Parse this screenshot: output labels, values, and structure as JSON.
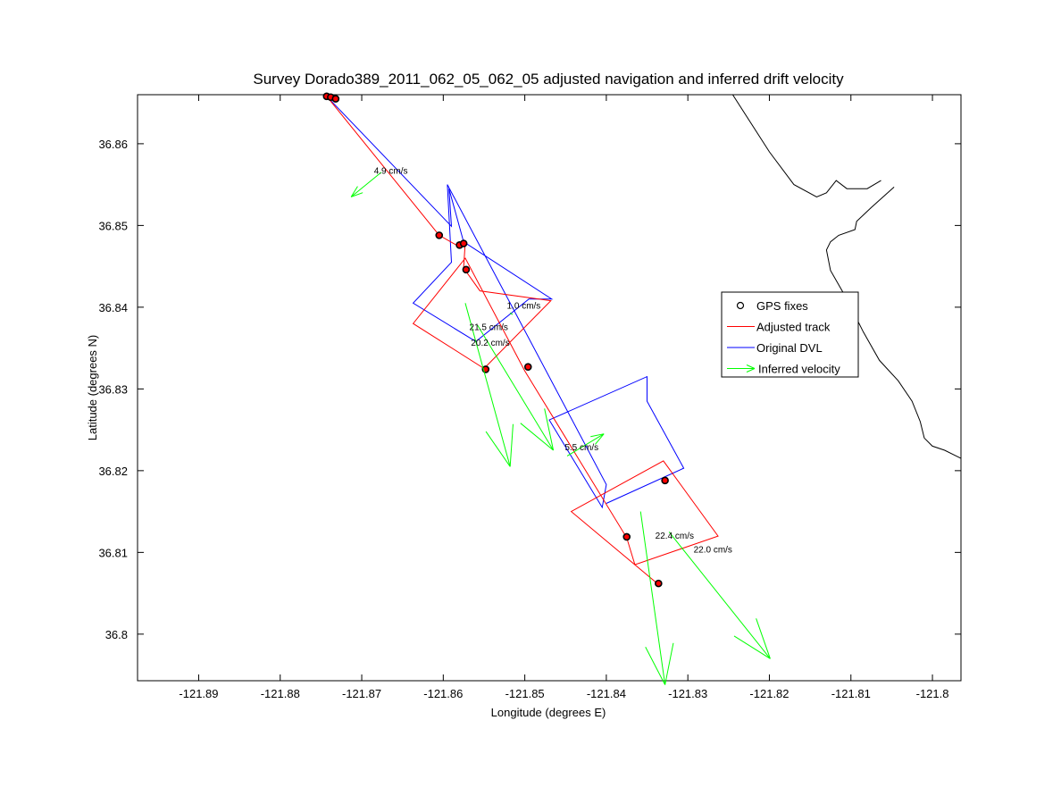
{
  "chart_data": {
    "type": "scatter",
    "title": "Survey Dorado389_2011_062_05_062_05 adjusted navigation and inferred drift velocity",
    "xlabel": "Longitude (degrees E)",
    "ylabel": "Latitude (degrees N)",
    "xlim": [
      -121.8975,
      -121.7965
    ],
    "ylim": [
      36.7943,
      36.866
    ],
    "x_ticks": [
      -121.89,
      -121.88,
      -121.87,
      -121.86,
      -121.85,
      -121.84,
      -121.83,
      -121.82,
      -121.81,
      -121.8
    ],
    "y_ticks": [
      36.8,
      36.81,
      36.82,
      36.83,
      36.84,
      36.85,
      36.86
    ],
    "x_tick_labels": [
      "-121.89",
      "-121.88",
      "-121.87",
      "-121.86",
      "-121.85",
      "-121.84",
      "-121.83",
      "-121.82",
      "-121.81",
      "-121.8"
    ],
    "y_tick_labels": [
      "36.8",
      "36.81",
      "36.82",
      "36.83",
      "36.84",
      "36.85",
      "36.86"
    ],
    "grid": false,
    "legend_position": "right",
    "legend": [
      {
        "label": "GPS fixes",
        "color": "#000000",
        "marker": "circle"
      },
      {
        "label": "Adjusted track",
        "color": "#ff0000",
        "marker": "line"
      },
      {
        "label": "Original DVL",
        "color": "#0000ff",
        "marker": "line"
      },
      {
        "label": "Inferred velocity",
        "color": "#00ff00",
        "marker": "arrow"
      }
    ],
    "series": [
      {
        "name": "Original DVL",
        "color": "#0000ff",
        "points": [
          [
            -121.8743,
            36.8658
          ],
          [
            -121.859,
            36.8499
          ],
          [
            -121.8593,
            36.8545
          ],
          [
            -121.8575,
            36.848
          ],
          [
            -121.8467,
            36.841
          ],
          [
            -121.8495,
            36.841
          ],
          [
            -121.856,
            36.8358
          ],
          [
            -121.8637,
            36.8405
          ],
          [
            -121.859,
            36.8455
          ],
          [
            -121.8595,
            36.855
          ],
          [
            -121.84,
            36.8183
          ],
          [
            -121.8405,
            36.8155
          ],
          [
            -121.847,
            36.8262
          ],
          [
            -121.835,
            36.8315
          ],
          [
            -121.835,
            36.8285
          ],
          [
            -121.8305,
            36.8203
          ],
          [
            -121.84,
            36.816
          ]
        ]
      },
      {
        "name": "Adjusted track",
        "color": "#ff0000",
        "points": [
          [
            -121.8743,
            36.8658
          ],
          [
            -121.8605,
            36.8488
          ],
          [
            -121.8582,
            36.8475
          ],
          [
            -121.8573,
            36.848
          ],
          [
            -121.8575,
            36.8448
          ],
          [
            -121.8555,
            36.842
          ],
          [
            -121.8468,
            36.8408
          ],
          [
            -121.855,
            36.8325
          ],
          [
            -121.8637,
            36.838
          ],
          [
            -121.8573,
            36.846
          ],
          [
            -121.85,
            36.8322
          ],
          [
            -121.8375,
            36.8118
          ],
          [
            -121.8365,
            36.8085
          ],
          [
            -121.8263,
            36.812
          ],
          [
            -121.833,
            36.8212
          ],
          [
            -121.8443,
            36.815
          ],
          [
            -121.8335,
            36.806
          ]
        ]
      }
    ],
    "gps_fixes": [
      [
        -121.8743,
        36.8658
      ],
      [
        -121.8738,
        36.8657
      ],
      [
        -121.8732,
        36.8655
      ],
      [
        -121.8605,
        36.8488
      ],
      [
        -121.858,
        36.8476
      ],
      [
        -121.8575,
        36.8478
      ],
      [
        -121.8572,
        36.8446
      ],
      [
        -121.8548,
        36.8324
      ],
      [
        -121.8496,
        36.8327
      ],
      [
        -121.8375,
        36.8119
      ],
      [
        -121.8328,
        36.8188
      ],
      [
        -121.8336,
        36.8062
      ]
    ],
    "velocity_arrows": [
      {
        "label": "4.9 cm/s",
        "from": [
          -121.8676,
          36.8565
        ],
        "to": [
          -121.8713,
          36.8535
        ]
      },
      {
        "label": "1.0 cm/s",
        "from": [
          -121.8518,
          36.8393
        ],
        "to": [
          -121.8515,
          36.8391
        ]
      },
      {
        "label": "21.5 cm/s",
        "from": [
          -121.8573,
          36.8405
        ],
        "to": [
          -121.8518,
          36.8205
        ]
      },
      {
        "label": "20.2 cm/s",
        "from": [
          -121.8558,
          36.8378
        ],
        "to": [
          -121.8465,
          36.8225
        ]
      },
      {
        "label": "5.5 cm/s",
        "from": [
          -121.8448,
          36.8218
        ],
        "to": [
          -121.8403,
          36.8245
        ]
      },
      {
        "label": "22.4 cm/s",
        "from": [
          -121.8358,
          36.815
        ],
        "to": [
          -121.8328,
          36.7938
        ]
      },
      {
        "label": "22.0 cm/s",
        "from": [
          -121.8323,
          36.8125
        ],
        "to": [
          -121.8199,
          36.797
        ]
      }
    ],
    "velocity_labels": [
      {
        "text": "4.9 cm/s",
        "at": [
          -121.8685,
          36.8563
        ]
      },
      {
        "text": "1.0 cm/s",
        "at": [
          -121.8522,
          36.8398
        ]
      },
      {
        "text": "21.5 cm/s",
        "at": [
          -121.8568,
          36.8372
        ]
      },
      {
        "text": "20.2 cm/s",
        "at": [
          -121.8566,
          36.8353
        ]
      },
      {
        "text": "5.5 cm/s",
        "at": [
          -121.8451,
          36.8225
        ]
      },
      {
        "text": "22.4 cm/s",
        "at": [
          -121.834,
          36.8117
        ]
      },
      {
        "text": "22.0 cm/s",
        "at": [
          -121.8293,
          36.81
        ]
      }
    ],
    "coastline": [
      [
        -121.8245,
        36.866
      ],
      [
        -121.82,
        36.859
      ],
      [
        -121.817,
        36.855
      ],
      [
        -121.8142,
        36.8535
      ],
      [
        -121.813,
        36.854
      ],
      [
        -121.8118,
        36.8555
      ],
      [
        -121.8105,
        36.8545
      ],
      [
        -121.808,
        36.8545
      ],
      [
        -121.8063,
        36.8555
      ],
      null,
      [
        -121.8047,
        36.8547
      ],
      [
        -121.8075,
        36.8522
      ],
      [
        -121.8093,
        36.8505
      ],
      [
        -121.8095,
        36.8495
      ],
      [
        -121.8115,
        36.8488
      ],
      [
        -121.8125,
        36.848
      ],
      [
        -121.813,
        36.847
      ],
      [
        -121.8125,
        36.8445
      ],
      [
        -121.8105,
        36.841
      ],
      [
        -121.8085,
        36.837
      ],
      [
        -121.8065,
        36.8335
      ],
      [
        -121.8042,
        36.831
      ],
      [
        -121.8025,
        36.8285
      ],
      [
        -121.8015,
        36.826
      ],
      [
        -121.801,
        36.824
      ],
      [
        -121.8,
        36.823
      ],
      [
        -121.7985,
        36.8225
      ],
      [
        -121.7965,
        36.8215
      ]
    ]
  }
}
